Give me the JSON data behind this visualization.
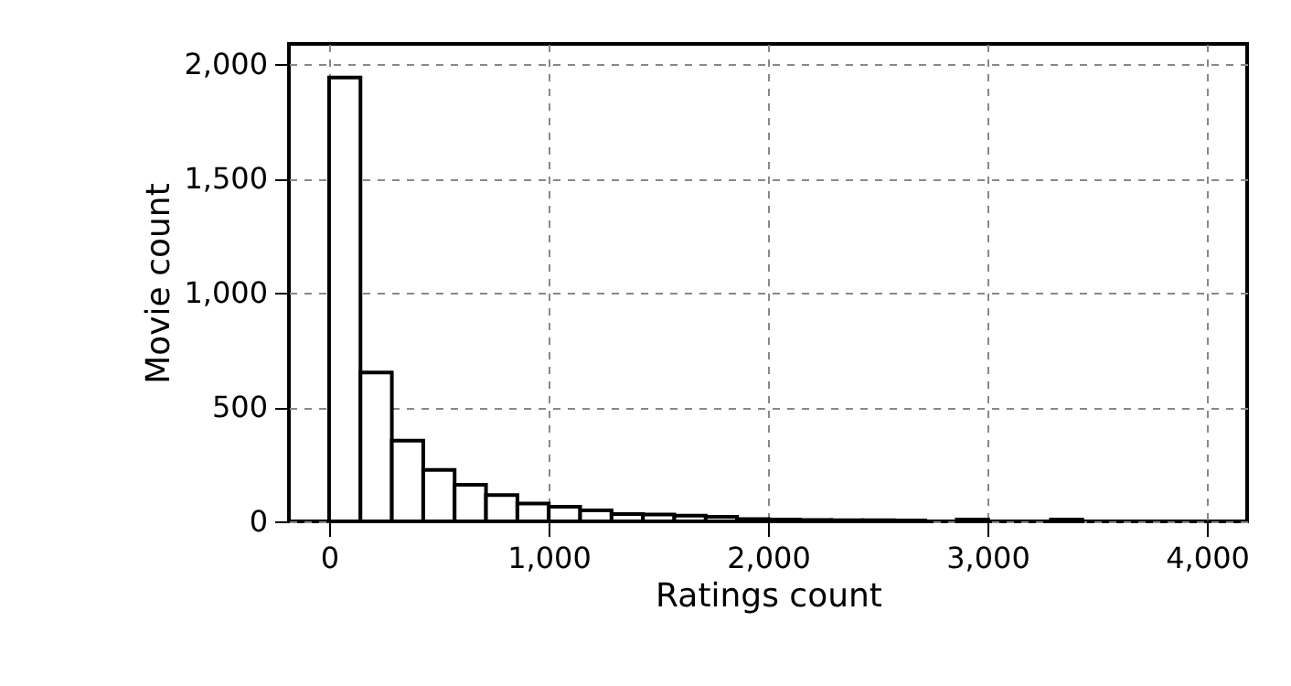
{
  "chart_data": {
    "type": "histogram",
    "xlabel": "Ratings count",
    "ylabel": "Movie count",
    "bins": [
      0,
      143,
      286,
      429,
      572,
      715,
      858,
      1001,
      1144,
      1287,
      1430,
      1573,
      1716,
      1859,
      2002,
      2145,
      2288,
      2431,
      2574,
      2717,
      2860,
      3003,
      3146,
      3289,
      3432
    ],
    "values": [
      1943,
      652,
      353,
      225,
      160,
      115,
      78,
      64,
      48,
      32,
      30,
      25,
      20,
      10,
      8,
      6,
      5,
      5,
      4,
      null,
      8,
      null,
      null,
      8
    ],
    "color": "#ffffff",
    "xlim": [
      -183,
      4183
    ],
    "ylim": [
      0,
      2090
    ],
    "xticks": [
      0,
      {
        "value": 1000,
        "label": "1,000"
      },
      {
        "value": 2000,
        "label": "2,000"
      },
      {
        "value": 3000,
        "label": "3,000"
      },
      {
        "value": 4000,
        "label": "4,000"
      }
    ],
    "yticks": [
      0,
      500,
      {
        "value": 1000,
        "label": "1,000"
      },
      {
        "value": 1500,
        "label": "1,500"
      },
      {
        "value": 2000,
        "label": "2,000"
      }
    ],
    "grid": true
  }
}
